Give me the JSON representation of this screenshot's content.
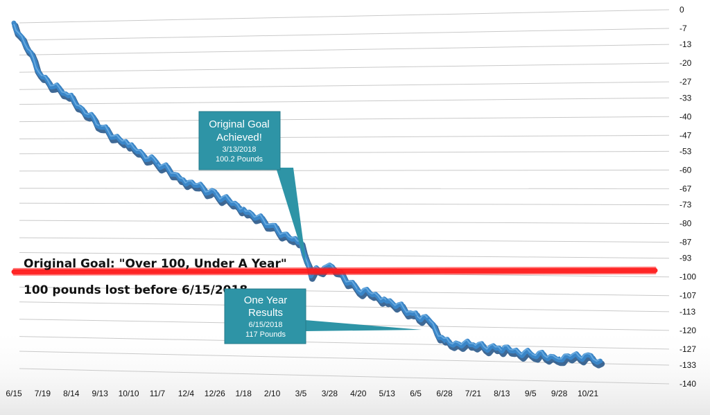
{
  "chart_data": {
    "type": "line",
    "ylim": [
      -140,
      0
    ],
    "yticks": [
      "0",
      "-7",
      "-13",
      "-20",
      "-27",
      "-33",
      "-40",
      "-47",
      "-53",
      "-60",
      "-67",
      "-73",
      "-80",
      "-87",
      "-93",
      "-100",
      "-107",
      "-113",
      "-120",
      "-127",
      "-133",
      "-140"
    ],
    "xticks": [
      "6/15",
      "7/19",
      "8/14",
      "9/13",
      "10/10",
      "11/7",
      "12/4",
      "12/26",
      "1/18",
      "2/10",
      "3/5",
      "3/28",
      "4/20",
      "5/13",
      "6/5",
      "6/28",
      "7/21",
      "8/13",
      "9/5",
      "9/28",
      "10/21"
    ],
    "series": [
      {
        "x": [
          "6/15",
          "7/19",
          "8/14",
          "9/13",
          "10/10",
          "11/7",
          "12/4",
          "12/26",
          "1/18",
          "2/10",
          "3/5",
          "3/13",
          "3/28",
          "4/20",
          "5/13",
          "6/5",
          "6/15",
          "6/28",
          "7/21",
          "8/13",
          "9/5",
          "9/28",
          "10/21",
          "10/31"
        ],
        "y": [
          0,
          -22,
          -31,
          -42,
          -50,
          -57,
          -64,
          -69,
          -75,
          -82,
          -89,
          -100.2,
          -97,
          -106,
          -110,
          -116,
          -117,
          -126,
          -127,
          -128,
          -130,
          -131,
          -130,
          -132
        ],
        "color": "#3a86c8"
      }
    ],
    "goal_line": {
      "y": -100,
      "color": "#ff1a1a"
    }
  },
  "annotations": {
    "goal_heading": "Original Goal: \"Over 100, Under A Year\"",
    "goal_subheading": "100 pounds lost before 6/15/2018",
    "callout_goal": {
      "title_line1": "Original Goal",
      "title_line2": "Achieved!",
      "date": "3/13/2018",
      "amount": "100.2 Pounds",
      "color": "#2e94a6"
    },
    "callout_year": {
      "title_line1": "One Year",
      "title_line2": "Results",
      "date": "6/15/2018",
      "amount": "117 Pounds",
      "color": "#2e94a6"
    }
  }
}
